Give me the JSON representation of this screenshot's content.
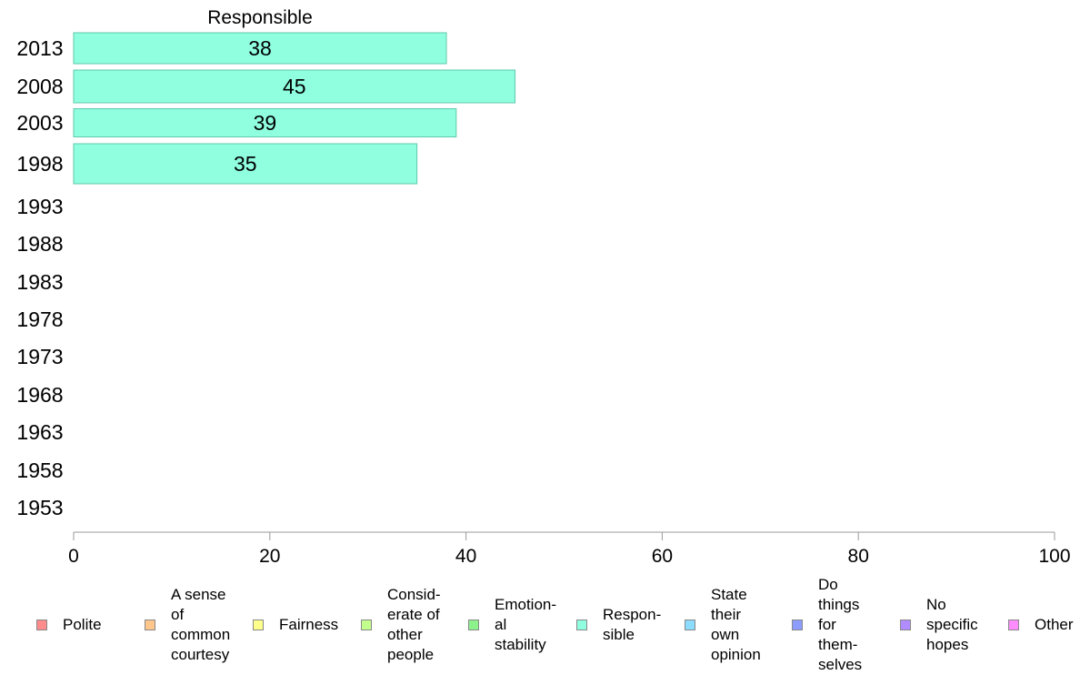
{
  "chart_data": {
    "type": "bar",
    "orientation": "horizontal",
    "title": "Responsible",
    "xlabel": "",
    "ylabel": "",
    "xlim": [
      0,
      100
    ],
    "x_ticks": [
      0,
      20,
      40,
      60,
      80,
      100
    ],
    "categories": [
      "2013",
      "2008",
      "2003",
      "1998",
      "1993",
      "1988",
      "1983",
      "1978",
      "1973",
      "1968",
      "1963",
      "1958",
      "1953"
    ],
    "series": [
      {
        "name": "Respon-\nsible",
        "color": "#8fffe0",
        "values": [
          38,
          45,
          39,
          35,
          null,
          null,
          null,
          null,
          null,
          null,
          null,
          null,
          null
        ]
      }
    ],
    "grid": false,
    "legend_position": "bottom"
  },
  "legend": [
    {
      "label": "Polite",
      "color": "#ff8c8c"
    },
    {
      "label": "A sense\nof\ncommon\ncourtesy",
      "color": "#ffc78c"
    },
    {
      "label": "Fairness",
      "color": "#ffff8c"
    },
    {
      "label": "Consid-\nerate of\nother\npeople",
      "color": "#c2ff8c"
    },
    {
      "label": "Emotion-\nal\nstability",
      "color": "#8cf28c"
    },
    {
      "label": "Respon-\nsible",
      "color": "#8fffe0"
    },
    {
      "label": "State\ntheir\nown\nopinion",
      "color": "#8cdcff"
    },
    {
      "label": "Do\nthings\nfor\nthem-\nselves",
      "color": "#8c9cff"
    },
    {
      "label": "No\nspecific\nhopes",
      "color": "#b08cff"
    },
    {
      "label": "Other",
      "color": "#ff8cff"
    }
  ]
}
